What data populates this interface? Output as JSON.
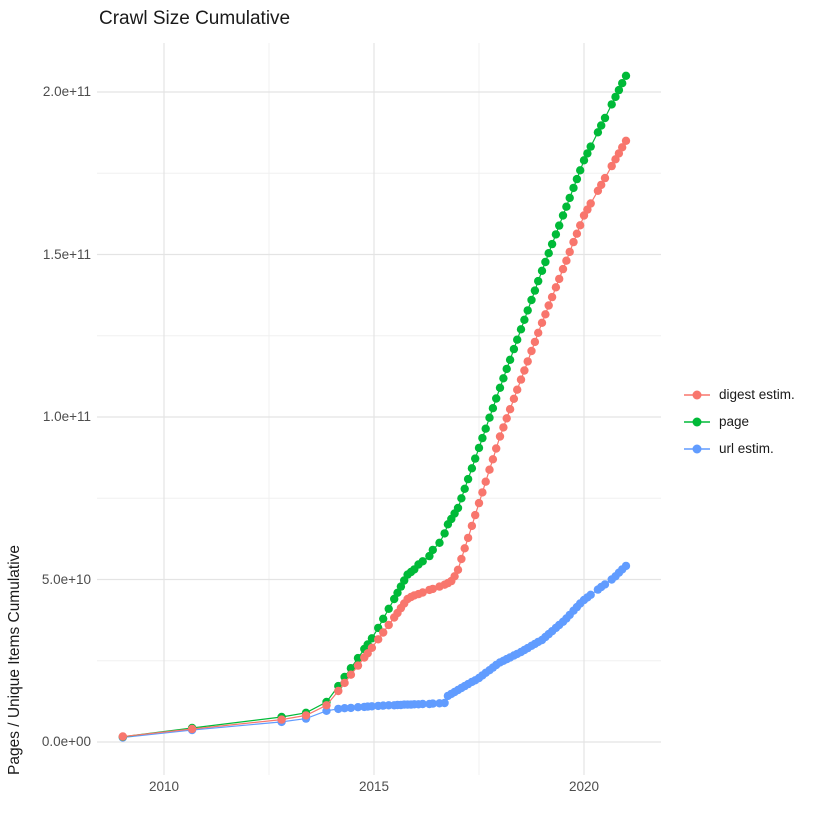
{
  "chart_data": {
    "type": "line",
    "title": "Crawl Size Cumulative",
    "xlabel": "",
    "ylabel": "Pages / Unique Items Cumulative",
    "value_unit": "1e9 (billions)",
    "xlim": [
      2008.4,
      2021.8
    ],
    "ylim_e9": [
      0,
      215
    ],
    "grid": true,
    "legend_position": "right",
    "x_ticks": [
      {
        "value": 2010,
        "label": "2010"
      },
      {
        "value": 2015,
        "label": "2015"
      },
      {
        "value": 2020,
        "label": "2020"
      }
    ],
    "x_minor_ticks": [
      2012.5,
      2017.5
    ],
    "y_ticks": [
      {
        "value_e9": 0,
        "label": "0.0e+00"
      },
      {
        "value_e9": 50,
        "label": "5.0e+10"
      },
      {
        "value_e9": 100,
        "label": "1.0e+11"
      },
      {
        "value_e9": 150,
        "label": "1.5e+11"
      },
      {
        "value_e9": 200,
        "label": "2.0e+11"
      }
    ],
    "y_minor_ticks_e9": [
      25,
      75,
      125,
      175
    ],
    "colors": {
      "digest": "#F8766D",
      "page": "#00BA38",
      "url": "#619CFF",
      "grid_major": "#E4E4E4",
      "grid_minor": "#F0F0F0",
      "tick_text": "#4d4d4d",
      "title_text": "#1a1a1a"
    },
    "series": [
      {
        "name": "digest estim.",
        "color": "#F8766D",
        "points": [
          [
            2009.02,
            1.7
          ],
          [
            2010.67,
            4.0
          ],
          [
            2012.8,
            6.9
          ],
          [
            2013.38,
            8.2
          ],
          [
            2013.87,
            11.3
          ],
          [
            2014.15,
            15.7
          ],
          [
            2014.3,
            18.2
          ],
          [
            2014.45,
            20.7
          ],
          [
            2014.62,
            23.5
          ],
          [
            2014.77,
            26.0
          ],
          [
            2014.85,
            27.3
          ],
          [
            2014.95,
            29.0
          ],
          [
            2015.1,
            31.6
          ],
          [
            2015.22,
            33.7
          ],
          [
            2015.35,
            36.0
          ],
          [
            2015.48,
            38.3
          ],
          [
            2015.56,
            39.7
          ],
          [
            2015.64,
            41.2
          ],
          [
            2015.72,
            42.6
          ],
          [
            2015.8,
            44.0
          ],
          [
            2015.88,
            44.6
          ],
          [
            2015.96,
            45.1
          ],
          [
            2016.06,
            45.5
          ],
          [
            2016.16,
            46.0
          ],
          [
            2016.32,
            46.8
          ],
          [
            2016.4,
            47.1
          ],
          [
            2016.56,
            47.8
          ],
          [
            2016.68,
            48.4
          ],
          [
            2016.76,
            48.9
          ],
          [
            2016.84,
            49.5
          ],
          [
            2016.92,
            51.0
          ],
          [
            2017.0,
            53.0
          ],
          [
            2017.08,
            56.3
          ],
          [
            2017.16,
            59.6
          ],
          [
            2017.24,
            62.8
          ],
          [
            2017.33,
            66.5
          ],
          [
            2017.41,
            69.8
          ],
          [
            2017.5,
            73.5
          ],
          [
            2017.58,
            76.8
          ],
          [
            2017.66,
            80.1
          ],
          [
            2017.75,
            83.8
          ],
          [
            2017.83,
            87.0
          ],
          [
            2017.91,
            90.3
          ],
          [
            2018.0,
            94.0
          ],
          [
            2018.08,
            96.8
          ],
          [
            2018.16,
            99.6
          ],
          [
            2018.24,
            102.4
          ],
          [
            2018.33,
            105.6
          ],
          [
            2018.41,
            108.4
          ],
          [
            2018.5,
            111.5
          ],
          [
            2018.58,
            114.3
          ],
          [
            2018.66,
            117.1
          ],
          [
            2018.75,
            120.3
          ],
          [
            2018.83,
            123.1
          ],
          [
            2018.91,
            125.9
          ],
          [
            2019.0,
            129.0
          ],
          [
            2019.08,
            131.6
          ],
          [
            2019.16,
            134.3
          ],
          [
            2019.24,
            136.9
          ],
          [
            2019.33,
            139.9
          ],
          [
            2019.41,
            142.5
          ],
          [
            2019.5,
            145.5
          ],
          [
            2019.58,
            148.1
          ],
          [
            2019.66,
            150.8
          ],
          [
            2019.75,
            153.8
          ],
          [
            2019.83,
            156.4
          ],
          [
            2019.91,
            159.0
          ],
          [
            2020.0,
            162.0
          ],
          [
            2020.08,
            163.8
          ],
          [
            2020.16,
            165.7
          ],
          [
            2020.33,
            169.6
          ],
          [
            2020.41,
            171.4
          ],
          [
            2020.5,
            173.5
          ],
          [
            2020.66,
            177.2
          ],
          [
            2020.75,
            179.3
          ],
          [
            2020.83,
            181.1
          ],
          [
            2020.91,
            183.0
          ],
          [
            2021.0,
            185.0
          ]
        ]
      },
      {
        "name": "page",
        "color": "#00BA38",
        "points": [
          [
            2009.02,
            1.6
          ],
          [
            2010.67,
            4.3
          ],
          [
            2012.8,
            7.7
          ],
          [
            2013.38,
            9.0
          ],
          [
            2013.87,
            12.3
          ],
          [
            2014.15,
            17.2
          ],
          [
            2014.3,
            20.0
          ],
          [
            2014.45,
            22.7
          ],
          [
            2014.62,
            25.8
          ],
          [
            2014.77,
            28.6
          ],
          [
            2014.85,
            30.0
          ],
          [
            2014.95,
            31.9
          ],
          [
            2015.1,
            35.1
          ],
          [
            2015.22,
            37.9
          ],
          [
            2015.35,
            41.0
          ],
          [
            2015.48,
            44.0
          ],
          [
            2015.56,
            45.9
          ],
          [
            2015.64,
            47.8
          ],
          [
            2015.72,
            49.7
          ],
          [
            2015.8,
            51.5
          ],
          [
            2015.88,
            52.3
          ],
          [
            2015.96,
            53.1
          ],
          [
            2016.06,
            54.6
          ],
          [
            2016.16,
            55.6
          ],
          [
            2016.32,
            57.2
          ],
          [
            2016.4,
            59.1
          ],
          [
            2016.56,
            61.3
          ],
          [
            2016.68,
            64.2
          ],
          [
            2016.76,
            67.0
          ],
          [
            2016.84,
            68.6
          ],
          [
            2016.92,
            70.3
          ],
          [
            2017.0,
            72.0
          ],
          [
            2017.08,
            75.0
          ],
          [
            2017.16,
            77.9
          ],
          [
            2017.24,
            80.9
          ],
          [
            2017.33,
            84.2
          ],
          [
            2017.41,
            87.2
          ],
          [
            2017.5,
            90.5
          ],
          [
            2017.58,
            93.5
          ],
          [
            2017.66,
            96.4
          ],
          [
            2017.75,
            99.8
          ],
          [
            2017.83,
            102.7
          ],
          [
            2017.91,
            105.7
          ],
          [
            2018.0,
            109.0
          ],
          [
            2018.08,
            111.9
          ],
          [
            2018.16,
            114.8
          ],
          [
            2018.24,
            117.6
          ],
          [
            2018.33,
            120.9
          ],
          [
            2018.41,
            123.8
          ],
          [
            2018.5,
            127.0
          ],
          [
            2018.58,
            129.9
          ],
          [
            2018.66,
            132.8
          ],
          [
            2018.75,
            136.0
          ],
          [
            2018.83,
            138.9
          ],
          [
            2018.91,
            141.8
          ],
          [
            2019.0,
            145.0
          ],
          [
            2019.08,
            147.7
          ],
          [
            2019.16,
            150.4
          ],
          [
            2019.24,
            153.2
          ],
          [
            2019.33,
            156.2
          ],
          [
            2019.41,
            158.9
          ],
          [
            2019.5,
            162.0
          ],
          [
            2019.58,
            164.7
          ],
          [
            2019.66,
            167.4
          ],
          [
            2019.75,
            170.5
          ],
          [
            2019.83,
            173.2
          ],
          [
            2019.91,
            175.9
          ],
          [
            2020.0,
            179.0
          ],
          [
            2020.08,
            181.1
          ],
          [
            2020.16,
            183.2
          ],
          [
            2020.33,
            187.6
          ],
          [
            2020.41,
            189.7
          ],
          [
            2020.5,
            192.0
          ],
          [
            2020.66,
            196.2
          ],
          [
            2020.75,
            198.5
          ],
          [
            2020.83,
            200.6
          ],
          [
            2020.91,
            202.7
          ],
          [
            2021.0,
            205.0
          ]
        ]
      },
      {
        "name": "url estim.",
        "color": "#619CFF",
        "points": [
          [
            2009.02,
            1.4
          ],
          [
            2010.67,
            3.7
          ],
          [
            2012.8,
            6.2
          ],
          [
            2013.38,
            7.2
          ],
          [
            2013.87,
            9.6
          ],
          [
            2014.15,
            10.2
          ],
          [
            2014.3,
            10.4
          ],
          [
            2014.45,
            10.5
          ],
          [
            2014.62,
            10.7
          ],
          [
            2014.77,
            10.8
          ],
          [
            2014.85,
            10.9
          ],
          [
            2014.95,
            11.0
          ],
          [
            2015.1,
            11.1
          ],
          [
            2015.22,
            11.2
          ],
          [
            2015.35,
            11.3
          ],
          [
            2015.48,
            11.3
          ],
          [
            2015.56,
            11.4
          ],
          [
            2015.64,
            11.4
          ],
          [
            2015.72,
            11.5
          ],
          [
            2015.8,
            11.5
          ],
          [
            2015.88,
            11.5
          ],
          [
            2015.96,
            11.6
          ],
          [
            2016.06,
            11.6
          ],
          [
            2016.16,
            11.7
          ],
          [
            2016.32,
            11.7
          ],
          [
            2016.4,
            11.8
          ],
          [
            2016.56,
            11.9
          ],
          [
            2016.68,
            12.0
          ],
          [
            2016.76,
            14.2
          ],
          [
            2016.84,
            14.8
          ],
          [
            2016.92,
            15.4
          ],
          [
            2017.0,
            16.0
          ],
          [
            2017.08,
            16.6
          ],
          [
            2017.16,
            17.2
          ],
          [
            2017.24,
            17.8
          ],
          [
            2017.33,
            18.5
          ],
          [
            2017.41,
            19.0
          ],
          [
            2017.5,
            19.7
          ],
          [
            2017.58,
            20.5
          ],
          [
            2017.66,
            21.3
          ],
          [
            2017.75,
            22.1
          ],
          [
            2017.83,
            22.9
          ],
          [
            2017.91,
            23.7
          ],
          [
            2018.0,
            24.5
          ],
          [
            2018.08,
            25.0
          ],
          [
            2018.16,
            25.5
          ],
          [
            2018.24,
            26.0
          ],
          [
            2018.33,
            26.6
          ],
          [
            2018.41,
            27.1
          ],
          [
            2018.5,
            27.7
          ],
          [
            2018.58,
            28.3
          ],
          [
            2018.66,
            28.9
          ],
          [
            2018.75,
            29.6
          ],
          [
            2018.83,
            30.2
          ],
          [
            2018.91,
            30.8
          ],
          [
            2019.0,
            31.4
          ],
          [
            2019.08,
            32.3
          ],
          [
            2019.16,
            33.2
          ],
          [
            2019.24,
            34.1
          ],
          [
            2019.33,
            35.1
          ],
          [
            2019.41,
            36.0
          ],
          [
            2019.5,
            37.0
          ],
          [
            2019.58,
            38.0
          ],
          [
            2019.66,
            39.1
          ],
          [
            2019.75,
            40.4
          ],
          [
            2019.83,
            41.5
          ],
          [
            2019.91,
            42.6
          ],
          [
            2020.0,
            43.7
          ],
          [
            2020.08,
            44.5
          ],
          [
            2020.16,
            45.3
          ],
          [
            2020.33,
            46.9
          ],
          [
            2020.41,
            47.7
          ],
          [
            2020.5,
            48.5
          ],
          [
            2020.66,
            50.0
          ],
          [
            2020.75,
            51.0
          ],
          [
            2020.83,
            52.1
          ],
          [
            2020.91,
            53.1
          ],
          [
            2021.0,
            54.2
          ]
        ]
      }
    ]
  }
}
